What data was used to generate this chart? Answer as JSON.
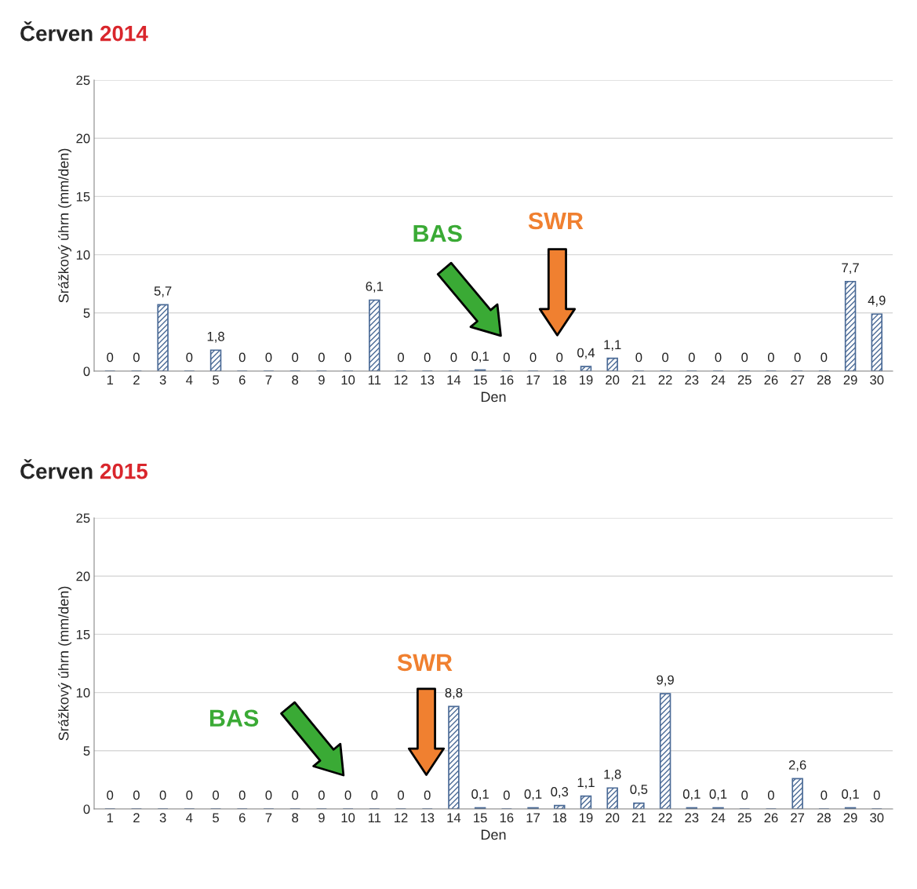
{
  "chart_data": [
    {
      "type": "bar",
      "title": "Červen 2014",
      "xlabel": "Den",
      "ylabel": "Srážkový úhrn (mm/den)",
      "categories": [
        "1",
        "2",
        "3",
        "4",
        "5",
        "6",
        "7",
        "8",
        "9",
        "10",
        "11",
        "12",
        "13",
        "14",
        "15",
        "16",
        "17",
        "18",
        "19",
        "20",
        "21",
        "22",
        "23",
        "24",
        "25",
        "26",
        "27",
        "28",
        "29",
        "30"
      ],
      "series": [
        {
          "color": "#4a6a96",
          "values": [
            0,
            0,
            5.7,
            0,
            1.8,
            0,
            0,
            0,
            0,
            0,
            6.1,
            0,
            0,
            0,
            0.1,
            0,
            0,
            0,
            0.4,
            1.1,
            0,
            0,
            0,
            0,
            0,
            0,
            0,
            0,
            7.7,
            4.9
          ],
          "value_labels": [
            "0",
            "0",
            "5,7",
            "0",
            "1,8",
            "0",
            "0",
            "0",
            "0",
            "0",
            "6,1",
            "0",
            "0",
            "0",
            "0,1",
            "0",
            "0",
            "0",
            "0,4",
            "1,1",
            "0",
            "0",
            "0",
            "0",
            "0",
            "0",
            "0",
            "0",
            "7,7",
            "4,9"
          ]
        }
      ],
      "ylim": [
        0,
        25
      ],
      "yticks": [
        0,
        5,
        10,
        15,
        20,
        25
      ],
      "grid": "y",
      "legend": false,
      "annotations": [
        "BAS",
        "SWR"
      ]
    },
    {
      "type": "bar",
      "title": "Červen 2015",
      "xlabel": "Den",
      "ylabel": "Srážkový úhrn (mm/den)",
      "categories": [
        "1",
        "2",
        "3",
        "4",
        "5",
        "6",
        "7",
        "8",
        "9",
        "10",
        "11",
        "12",
        "13",
        "14",
        "15",
        "16",
        "17",
        "18",
        "19",
        "20",
        "21",
        "22",
        "23",
        "24",
        "25",
        "26",
        "27",
        "28",
        "29",
        "30"
      ],
      "series": [
        {
          "color": "#4a6a96",
          "values": [
            0,
            0,
            0,
            0,
            0,
            0,
            0,
            0,
            0,
            0,
            0,
            0,
            0,
            8.8,
            0.1,
            0,
            0.1,
            0.3,
            1.1,
            1.8,
            0.5,
            9.9,
            0.1,
            0.1,
            0,
            0,
            2.6,
            0,
            0.1,
            0
          ],
          "value_labels": [
            "0",
            "0",
            "0",
            "0",
            "0",
            "0",
            "0",
            "0",
            "0",
            "0",
            "0",
            "0",
            "0",
            "8,8",
            "0,1",
            "0",
            "0,1",
            "0,3",
            "1,1",
            "1,8",
            "0,5",
            "9,9",
            "0,1",
            "0,1",
            "0",
            "0",
            "2,6",
            "0",
            "0,1",
            "0"
          ]
        }
      ],
      "ylim": [
        0,
        25
      ],
      "yticks": [
        0,
        5,
        10,
        15,
        20,
        25
      ],
      "grid": "y",
      "legend": false,
      "annotations": [
        "BAS",
        "SWR"
      ]
    }
  ]
}
